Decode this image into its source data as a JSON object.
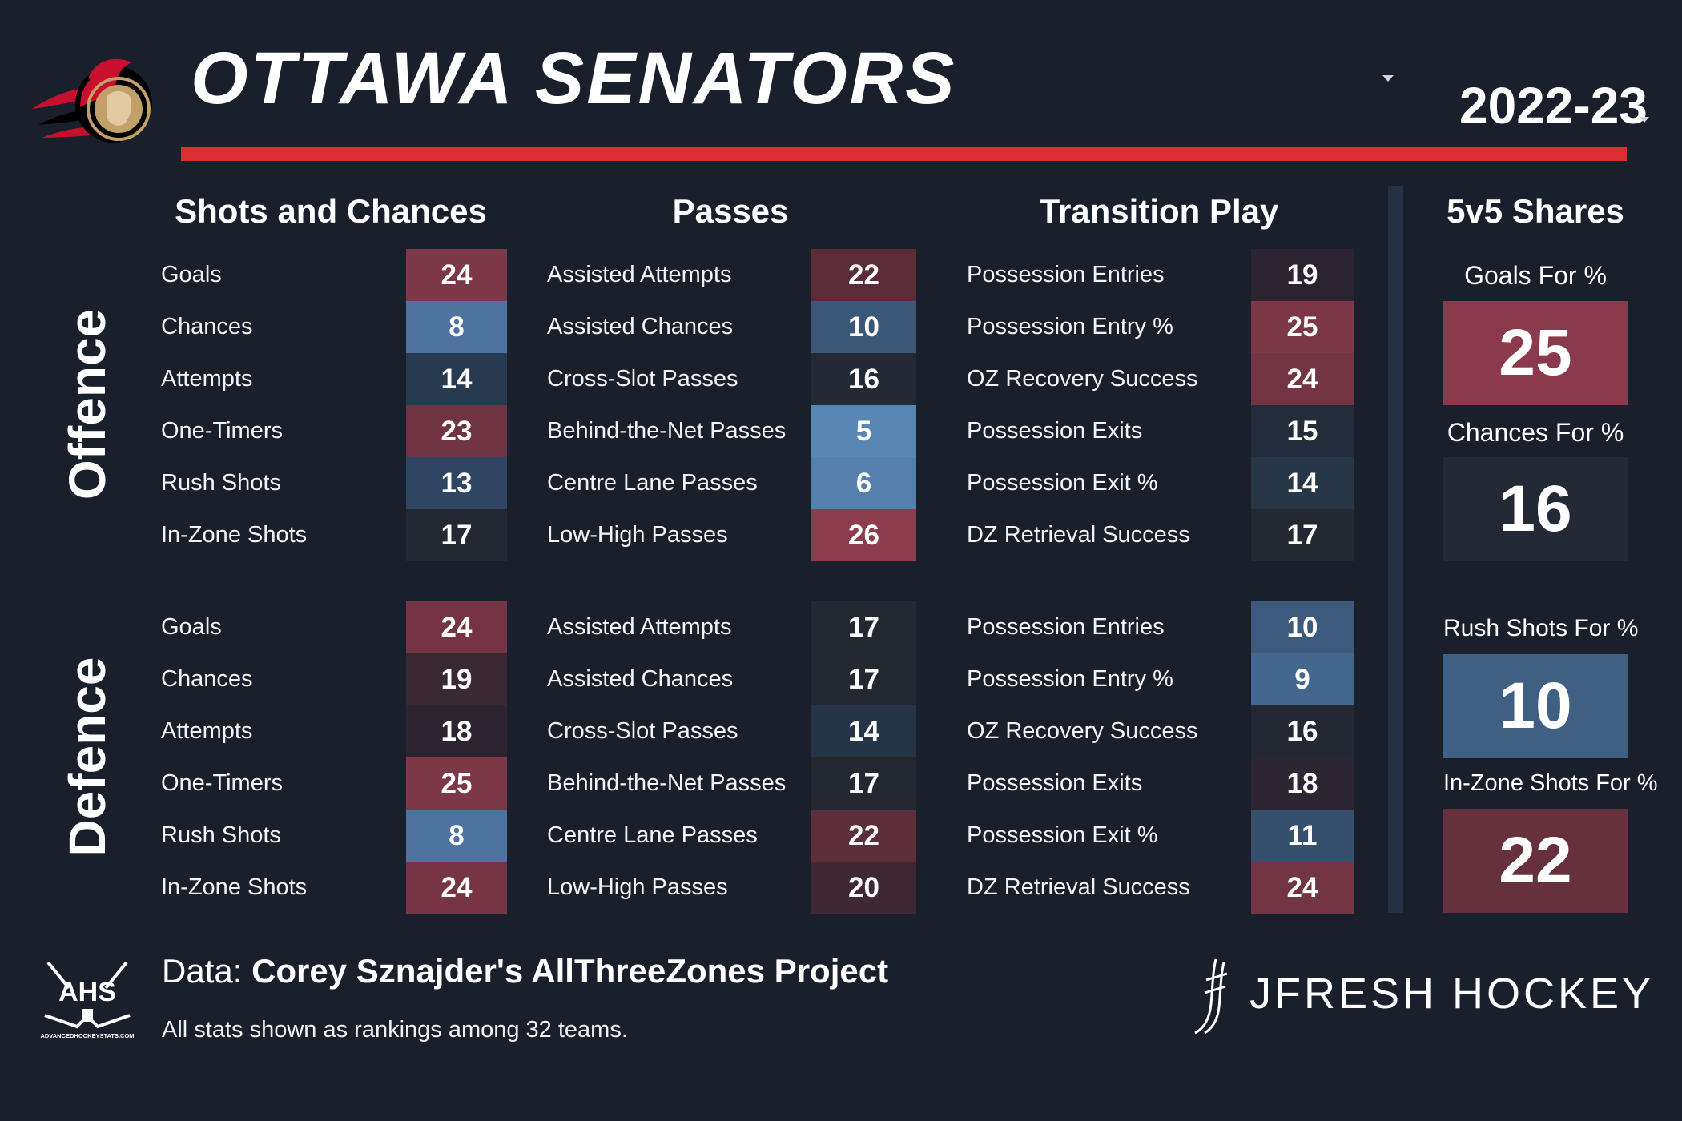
{
  "header": {
    "team": "OTTAWA SENATORS",
    "season": "2022-23"
  },
  "sections": {
    "shots": "Shots and Chances",
    "passes": "Passes",
    "transition": "Transition Play",
    "shares": "5v5 Shares"
  },
  "side_labels": {
    "offence": "Offence",
    "defence": "Defence"
  },
  "offence": {
    "shots": [
      {
        "label": "Goals",
        "rank": "24",
        "color": "#7c3846"
      },
      {
        "label": "Chances",
        "rank": "8",
        "color": "#4d739e"
      },
      {
        "label": "Attempts",
        "rank": "14",
        "color": "#283a4f"
      },
      {
        "label": "One-Timers",
        "rank": "23",
        "color": "#6f3342"
      },
      {
        "label": "Rush Shots",
        "rank": "13",
        "color": "#2f4561"
      },
      {
        "label": "In-Zone Shots",
        "rank": "17",
        "color": "#232833"
      }
    ],
    "passes": [
      {
        "label": "Assisted Attempts",
        "rank": "22",
        "color": "#5b2c38"
      },
      {
        "label": "Assisted Chances",
        "rank": "10",
        "color": "#3b5778"
      },
      {
        "label": "Cross-Slot Passes",
        "rank": "16",
        "color": "#222a36"
      },
      {
        "label": "Behind-the-Net Passes",
        "rank": "5",
        "color": "#5a86b4"
      },
      {
        "label": "Centre Lane Passes",
        "rank": "6",
        "color": "#5580ae"
      },
      {
        "label": "Low-High Passes",
        "rank": "26",
        "color": "#8d3c4b"
      }
    ],
    "transition": [
      {
        "label": "Possession Entries",
        "rank": "19",
        "color": "#2b2430"
      },
      {
        "label": "Possession Entry %",
        "rank": "25",
        "color": "#7d3848"
      },
      {
        "label": "OZ Recovery Success",
        "rank": "24",
        "color": "#733444"
      },
      {
        "label": "Possession Exits",
        "rank": "15",
        "color": "#222c3a"
      },
      {
        "label": "Possession Exit %",
        "rank": "14",
        "color": "#283748"
      },
      {
        "label": "DZ Retrieval Success",
        "rank": "17",
        "color": "#242830"
      }
    ]
  },
  "defence": {
    "shots": [
      {
        "label": "Goals",
        "rank": "24",
        "color": "#743445"
      },
      {
        "label": "Chances",
        "rank": "19",
        "color": "#3a2832"
      },
      {
        "label": "Attempts",
        "rank": "18",
        "color": "#2c2530"
      },
      {
        "label": "One-Timers",
        "rank": "25",
        "color": "#7d3848"
      },
      {
        "label": "Rush Shots",
        "rank": "8",
        "color": "#4d739e"
      },
      {
        "label": "In-Zone Shots",
        "rank": "24",
        "color": "#753545"
      }
    ],
    "passes": [
      {
        "label": "Assisted Attempts",
        "rank": "17",
        "color": "#232831"
      },
      {
        "label": "Assisted Chances",
        "rank": "17",
        "color": "#242830"
      },
      {
        "label": "Cross-Slot Passes",
        "rank": "14",
        "color": "#243548"
      },
      {
        "label": "Behind-the-Net Passes",
        "rank": "17",
        "color": "#242830"
      },
      {
        "label": "Centre Lane Passes",
        "rank": "22",
        "color": "#5c2e3a"
      },
      {
        "label": "Low-High Passes",
        "rank": "20",
        "color": "#3f2833"
      }
    ],
    "transition": [
      {
        "label": "Possession Entries",
        "rank": "10",
        "color": "#3d5a7c"
      },
      {
        "label": "Possession Entry %",
        "rank": "9",
        "color": "#44678f"
      },
      {
        "label": "OZ Recovery Success",
        "rank": "16",
        "color": "#232833"
      },
      {
        "label": "Possession Exits",
        "rank": "18",
        "color": "#2d2531"
      },
      {
        "label": "Possession Exit %",
        "rank": "11",
        "color": "#354f6d"
      },
      {
        "label": "DZ Retrieval Success",
        "rank": "24",
        "color": "#733444"
      }
    ]
  },
  "shares": [
    {
      "label": "Goals For %",
      "rank": "25",
      "color": "#8b3a4b"
    },
    {
      "label": "Chances For %",
      "rank": "16",
      "color": "#232a35"
    },
    {
      "label": "Rush Shots For %",
      "rank": "10",
      "color": "#3f5f83"
    },
    {
      "label": "In-Zone Shots For %",
      "rank": "22",
      "color": "#66303d"
    }
  ],
  "footer": {
    "data_prefix": "Data: ",
    "data_source": "Corey Sznajder's AllThreeZones Project",
    "note": "All stats shown as rankings among 32 teams.",
    "ahs_logo_text": "AHS",
    "ahs_site": "ADVANCEDHOCKEYSTATS.COM",
    "brand": "JFRESH HOCKEY"
  }
}
